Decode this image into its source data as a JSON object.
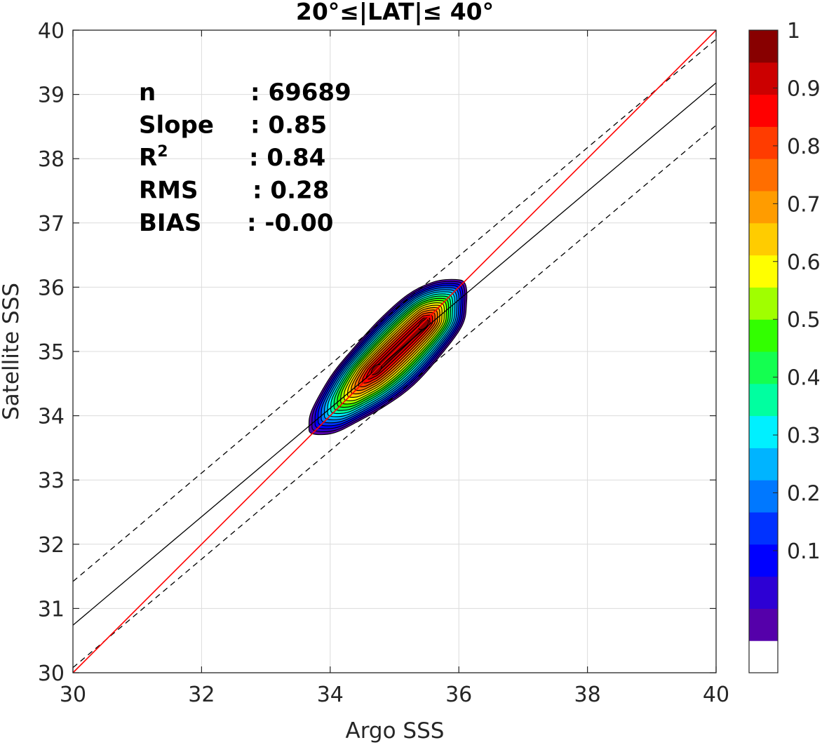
{
  "chart_data": {
    "type": "contour",
    "title": "20°≤|LAT|≤ 40°",
    "xlabel": "Argo SSS",
    "ylabel": "Satellite SSS",
    "xlim": [
      30,
      40
    ],
    "ylim": [
      30,
      40
    ],
    "xticks": [
      "30",
      "32",
      "34",
      "36",
      "38",
      "40"
    ],
    "yticks": [
      "30",
      "31",
      "32",
      "33",
      "34",
      "35",
      "36",
      "37",
      "38",
      "39",
      "40"
    ],
    "grid": true,
    "stats": [
      {
        "label": "n",
        "value": ": 69689"
      },
      {
        "label": "Slope",
        "value": ": 0.85"
      },
      {
        "label": "R",
        "sup": "2",
        "value": ": 0.84"
      },
      {
        "label": "RMS",
        "value": ": 0.28"
      },
      {
        "label": "BIAS",
        "value": ": -0.00"
      }
    ],
    "lines": {
      "one_to_one": {
        "x": [
          30,
          40
        ],
        "y": [
          30,
          40
        ],
        "color": "#ff0000"
      },
      "regression": {
        "x": [
          30,
          40
        ],
        "y": [
          30.74,
          39.18
        ],
        "color": "#000000"
      },
      "upper_bound": {
        "x": [
          30,
          40
        ],
        "y": [
          31.42,
          39.86
        ],
        "color": "#000000",
        "dash": true
      },
      "lower_bound": {
        "x": [
          30,
          40
        ],
        "y": [
          30.08,
          38.52
        ],
        "color": "#000000",
        "dash": true
      }
    },
    "density": {
      "peaks": [
        {
          "x": 34.72,
          "y": 34.72
        },
        {
          "x": 35.45,
          "y": 35.42
        }
      ],
      "outer_boundary": [
        [
          33.72,
          33.72
        ],
        [
          34.05,
          33.73
        ],
        [
          34.45,
          33.92
        ],
        [
          34.9,
          34.18
        ],
        [
          35.3,
          34.48
        ],
        [
          35.7,
          34.92
        ],
        [
          36.05,
          35.4
        ],
        [
          36.12,
          35.75
        ],
        [
          36.1,
          36.05
        ],
        [
          35.95,
          36.12
        ],
        [
          35.6,
          36.08
        ],
        [
          35.2,
          35.88
        ],
        [
          34.75,
          35.48
        ],
        [
          34.3,
          34.98
        ],
        [
          34.0,
          34.6
        ],
        [
          33.72,
          34.1
        ],
        [
          33.67,
          33.85
        ]
      ]
    },
    "colorbar": {
      "ticks": [
        "0.1",
        "0.2",
        "0.3",
        "0.4",
        "0.5",
        "0.6",
        "0.7",
        "0.8",
        "0.9",
        "1"
      ],
      "colors": [
        "#ffffff",
        "#5500aa",
        "#2d00d4",
        "#0000ff",
        "#0032ff",
        "#0078ff",
        "#00b4ff",
        "#00f0ff",
        "#00ffa0",
        "#14ff50",
        "#32ff00",
        "#a0ff00",
        "#ffff00",
        "#ffcc00",
        "#ff9c00",
        "#ff6e00",
        "#ff3c00",
        "#ff0000",
        "#cc0000",
        "#880000"
      ]
    }
  }
}
